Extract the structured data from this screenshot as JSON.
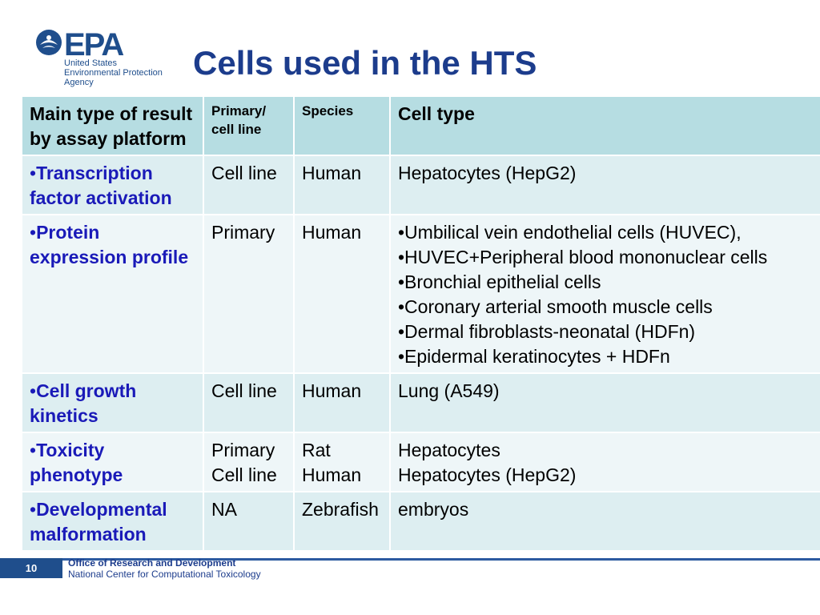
{
  "logo": {
    "wordmark": "EPA",
    "agency_lines": [
      "United States",
      "Environmental Protection",
      "Agency"
    ]
  },
  "title": "Cells used in the HTS",
  "table": {
    "headers": {
      "main_type": "Main type of result by assay platform",
      "primary_cell_line": "Primary/ cell line",
      "species": "Species",
      "cell_type": "Cell type"
    },
    "rows": [
      {
        "bullet": "•",
        "result": "Transcription factor activation",
        "primary": [
          "Cell line"
        ],
        "species": [
          "Human"
        ],
        "cell_types": [
          "Hepatocytes (HepG2)"
        ]
      },
      {
        "bullet": "•",
        "result": "Protein expression profile",
        "primary": [
          "Primary"
        ],
        "species": [
          "Human"
        ],
        "cell_types": [
          "•Umbilical vein endothelial cells (HUVEC),",
          "•HUVEC+Peripheral blood mononuclear cells",
          "•Bronchial epithelial cells",
          "•Coronary arterial smooth muscle cells",
          "•Dermal fibroblasts-neonatal (HDFn)",
          "•Epidermal keratinocytes + HDFn"
        ]
      },
      {
        "bullet": "•",
        "result": "Cell growth kinetics",
        "primary": [
          "Cell line"
        ],
        "species": [
          "Human"
        ],
        "cell_types": [
          "Lung (A549)"
        ]
      },
      {
        "bullet": "•",
        "result": "Toxicity phenotype",
        "primary": [
          "Primary",
          "Cell line"
        ],
        "species": [
          "Rat",
          "Human"
        ],
        "cell_types": [
          "Hepatocytes",
          "Hepatocytes (HepG2)"
        ]
      },
      {
        "bullet": "•",
        "result": "Developmental malformation",
        "primary": [
          "NA"
        ],
        "species": [
          "Zebrafish"
        ],
        "cell_types": [
          "embryos"
        ]
      }
    ]
  },
  "footer": {
    "page_number": "10",
    "office": "Office of Research and Development",
    "center": "National Center for Computational Toxicology"
  },
  "colors": {
    "header_bg": "#b6dde2",
    "row_odd_bg": "#ddeef1",
    "row_even_bg": "#eef6f8",
    "title": "#1c3c8c",
    "result_text": "#1a1ab8",
    "brand_blue": "#1f4e8c"
  }
}
